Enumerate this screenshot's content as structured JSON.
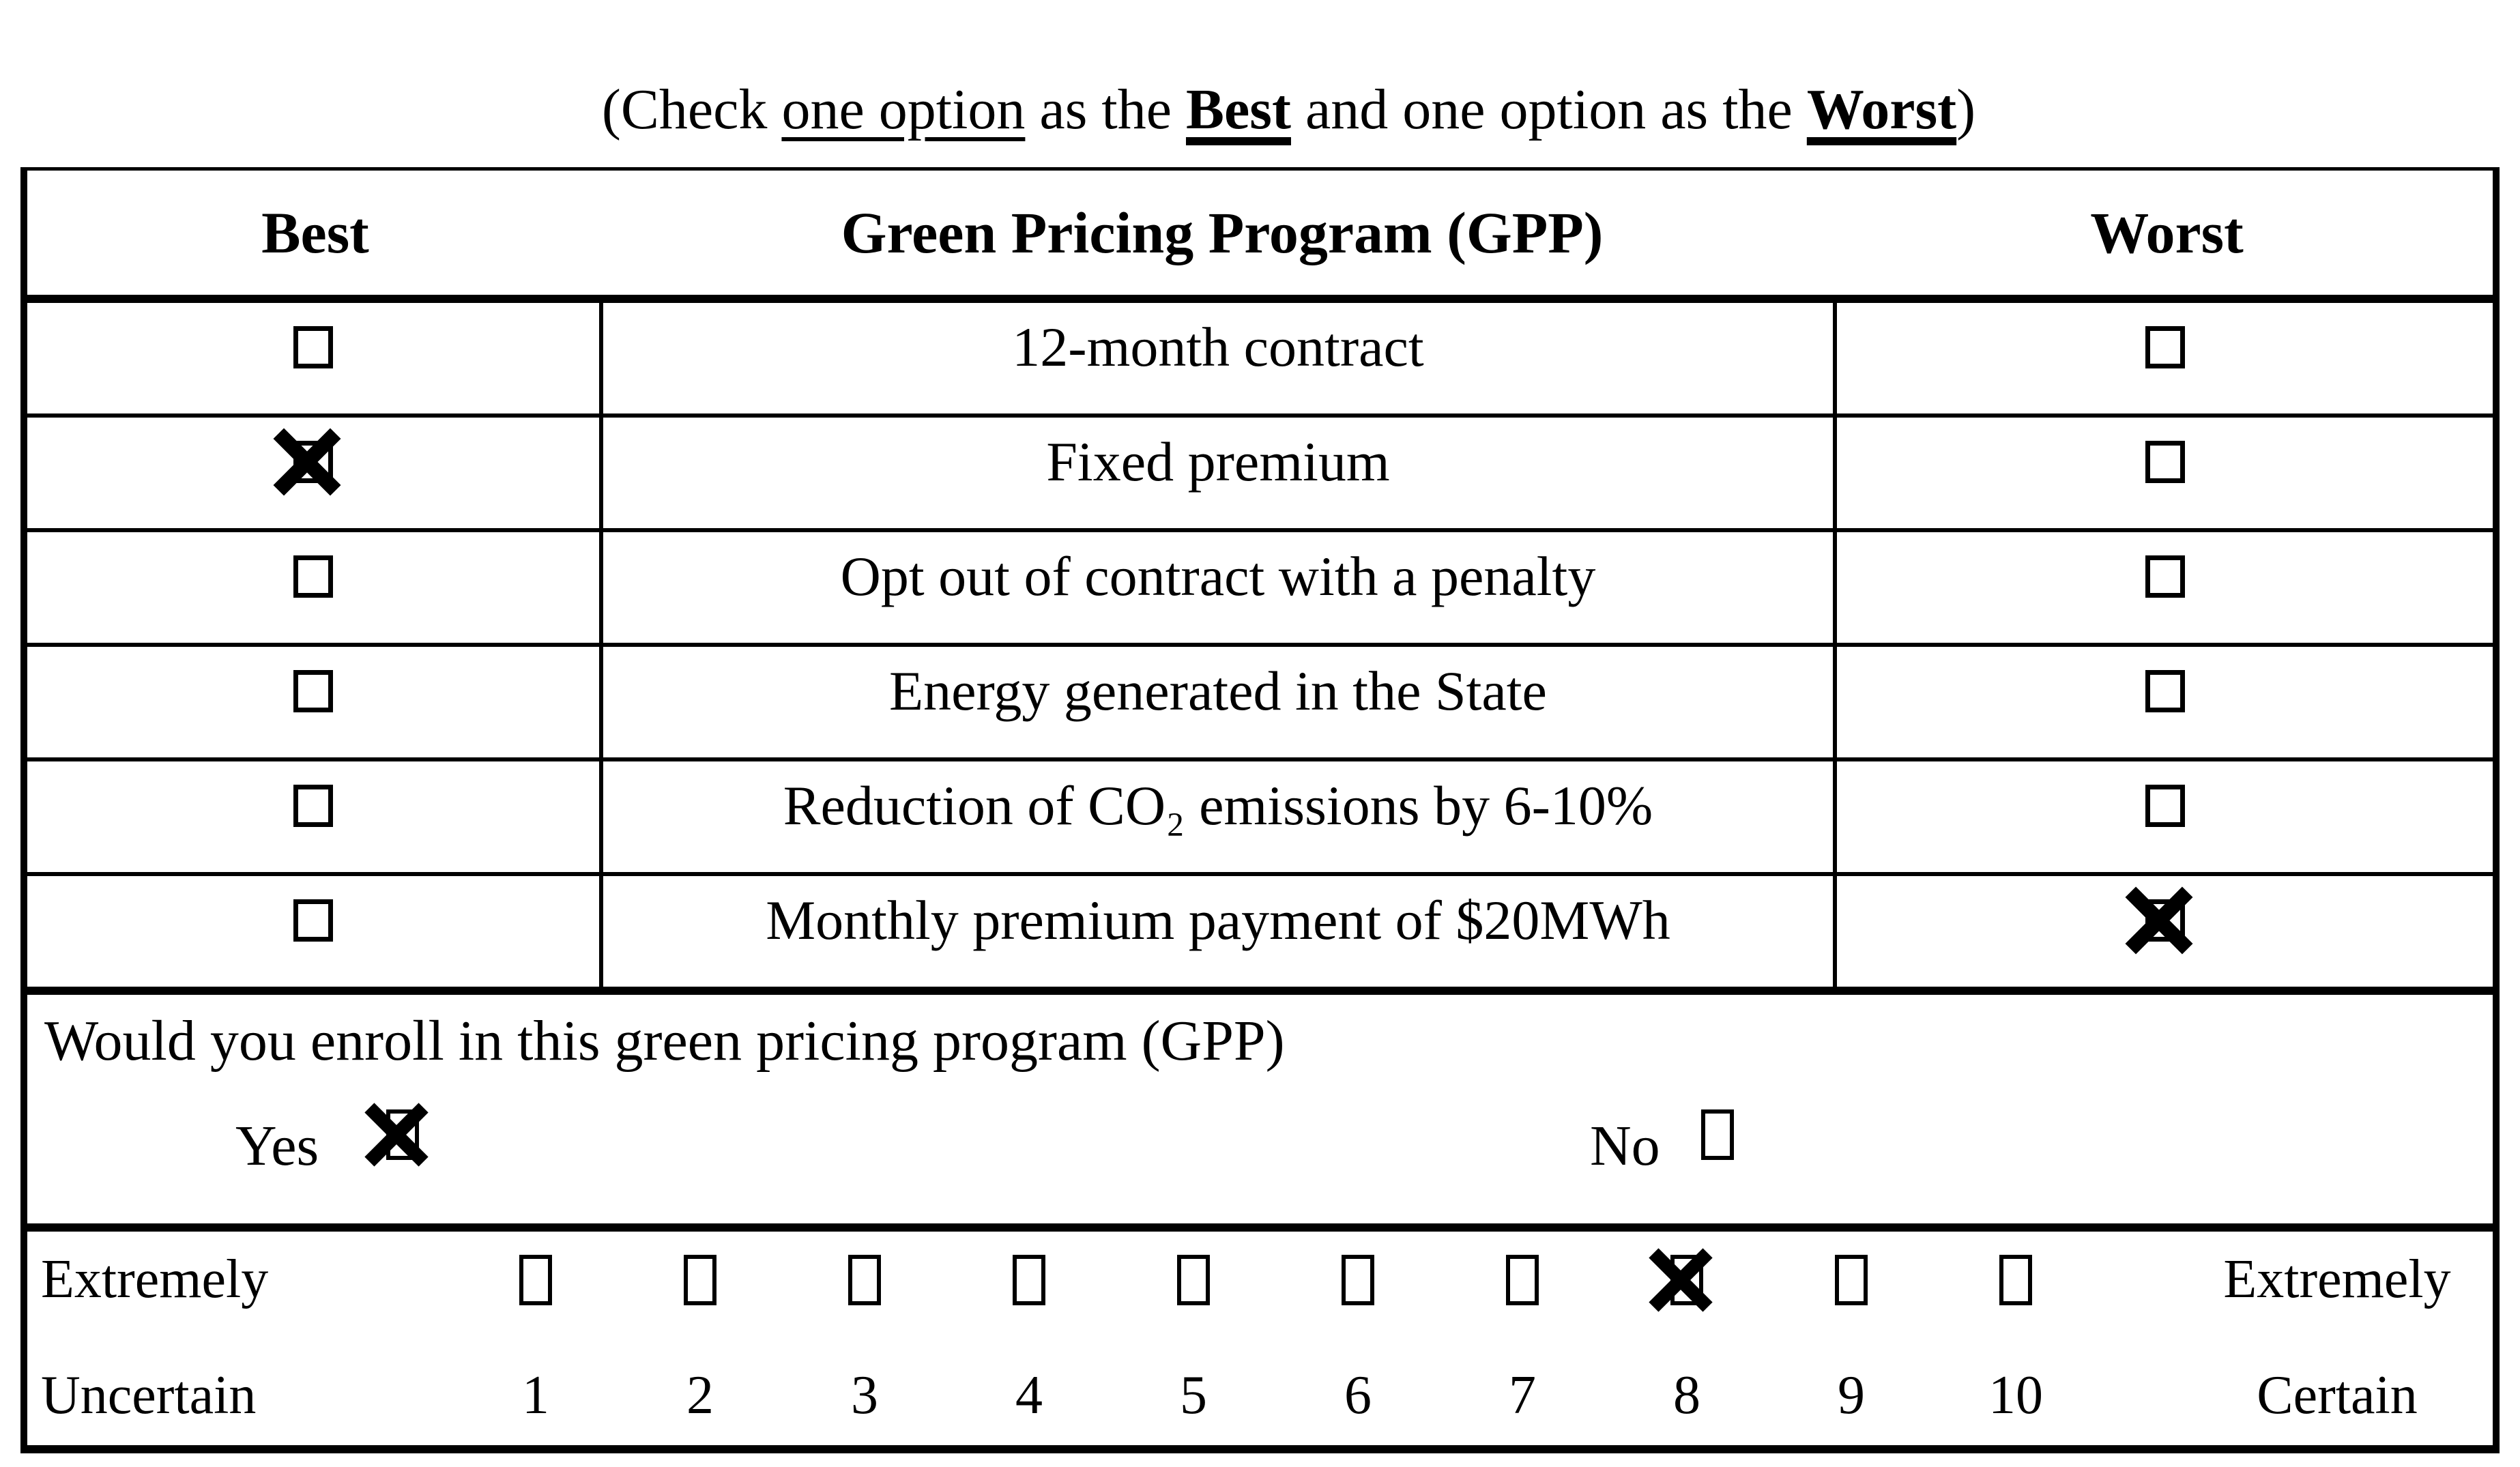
{
  "title": {
    "seg_open": "(Check ",
    "seg_one_option": "one option",
    "seg_as_the": " as the ",
    "seg_best": "Best",
    "seg_middle": " and one option as the ",
    "seg_worst": "Worst",
    "seg_close": ")"
  },
  "table": {
    "headers": {
      "best": "Best",
      "program": "Green Pricing Program (GPP)",
      "worst": "Worst"
    },
    "rows": [
      {
        "label": "12-month contract",
        "best_checked": false,
        "worst_checked": false
      },
      {
        "label": "Fixed premium",
        "best_checked": true,
        "worst_checked": false
      },
      {
        "label": "Opt out of contract with a penalty",
        "best_checked": false,
        "worst_checked": false
      },
      {
        "label": "Energy generated in the State",
        "best_checked": false,
        "worst_checked": false
      },
      {
        "label": "Reduction of CO₂ emissions by 6-10%",
        "best_checked": false,
        "worst_checked": false
      },
      {
        "label": "Monthly premium payment of $20MWh",
        "best_checked": false,
        "worst_checked": true
      }
    ]
  },
  "enroll": {
    "question": "Would you enroll in this green pricing program (GPP)",
    "yes_label": "Yes",
    "yes_checked": true,
    "no_label": "No",
    "no_checked": false
  },
  "certainty_scale": {
    "left_label": [
      "Extremely",
      "Uncertain"
    ],
    "right_label": [
      "Extremely",
      "Certain"
    ],
    "options": [
      {
        "value": "1",
        "checked": false
      },
      {
        "value": "2",
        "checked": false
      },
      {
        "value": "3",
        "checked": false
      },
      {
        "value": "4",
        "checked": false
      },
      {
        "value": "5",
        "checked": false
      },
      {
        "value": "6",
        "checked": false
      },
      {
        "value": "7",
        "checked": false
      },
      {
        "value": "8",
        "checked": true
      },
      {
        "value": "9",
        "checked": false
      },
      {
        "value": "10",
        "checked": false
      }
    ]
  },
  "icons": {
    "checkbox_empty": "ballot-box",
    "checkbox_checked": "ballot-box-with-x"
  },
  "colors": {
    "ink": "#000000",
    "background": "#ffffff"
  }
}
